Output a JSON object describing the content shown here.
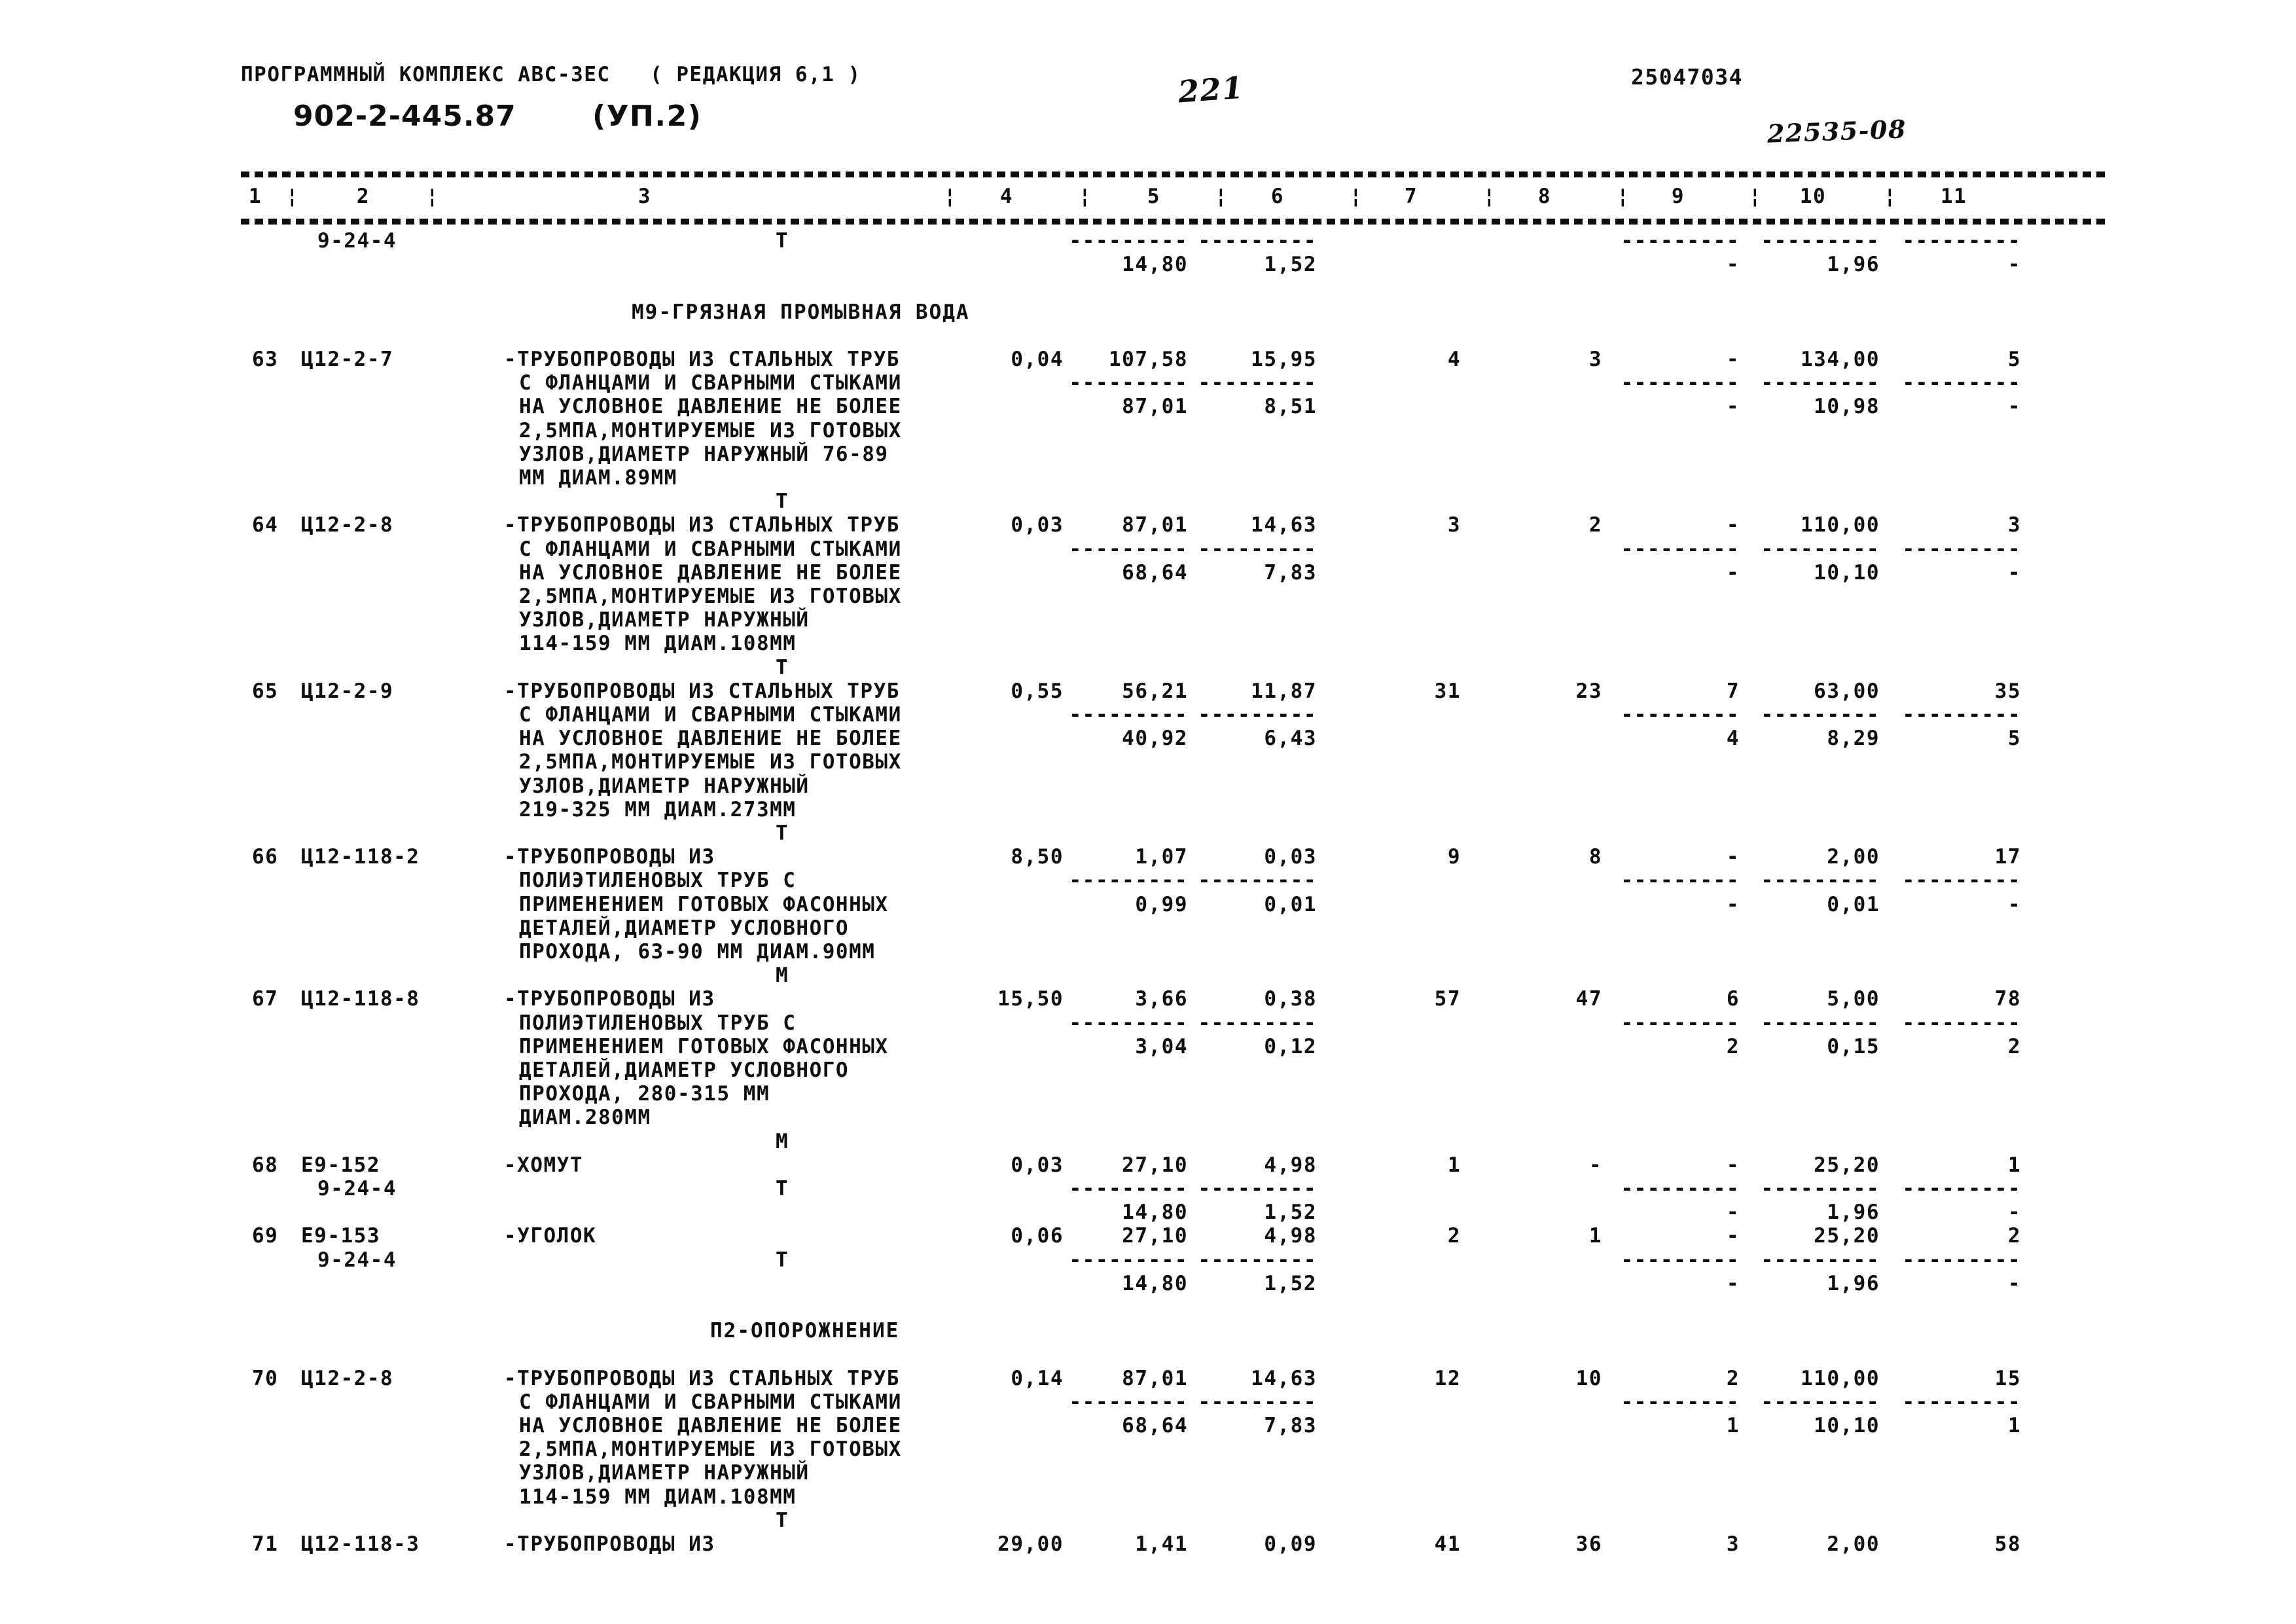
{
  "header": {
    "title": "ПРОГРАММНЫЙ КОМПЛЕКС АВС-3ЕС   ( РЕДАКЦИЯ 6,1 )",
    "page_number_handwritten": "221",
    "code_right": "25047034",
    "doc_number": "902-2-445.87",
    "doc_part": "(УП.2)",
    "stamp_handwritten": "22535-08"
  },
  "table": {
    "column_numbers": [
      "1",
      "2",
      "3",
      "4",
      "5",
      "6",
      "7",
      "8",
      "9",
      "10",
      "11"
    ],
    "column_separator": "¦",
    "dash_segment": "---------",
    "blocks": [
      {
        "type": "carryover",
        "code2": "9-24-4",
        "marker": "Т",
        "values2": [
          "14,80",
          "1,52",
          "-",
          "1,96",
          "-"
        ]
      },
      {
        "type": "section",
        "label": "М9-ГРЯЗНАЯ ПРОМЫВНАЯ ВОДА"
      },
      {
        "type": "item",
        "num": "63",
        "code": "Ц12-2-7",
        "marker": "Т",
        "v4": "0,04",
        "desc": [
          "-ТРУБОПРОВОДЫ ИЗ СТАЛЬНЫХ ТРУБ",
          "С ФЛАНЦАМИ И СВАРНЫМИ СТЫКАМИ",
          "НА УСЛОВНОЕ ДАВЛЕНИЕ НЕ БОЛЕЕ",
          "2,5МПА,МОНТИРУЕМЫЕ ИЗ ГОТОВЫХ",
          "УЗЛОВ,ДИАМЕТР НАРУЖНЫЙ 76-89",
          "ММ ДИАМ.89ММ"
        ],
        "values": [
          "107,58",
          "15,95",
          "4",
          "3",
          "-",
          "134,00",
          "5"
        ],
        "values2": [
          "87,01",
          "8,51",
          "-",
          "10,98",
          "-"
        ]
      },
      {
        "type": "item",
        "num": "64",
        "code": "Ц12-2-8",
        "marker": "Т",
        "v4": "0,03",
        "desc": [
          "-ТРУБОПРОВОДЫ ИЗ СТАЛЬНЫХ ТРУБ",
          "С ФЛАНЦАМИ И СВАРНЫМИ СТЫКАМИ",
          "НА УСЛОВНОЕ ДАВЛЕНИЕ НЕ БОЛЕЕ",
          "2,5МПА,МОНТИРУЕМЫЕ ИЗ ГОТОВЫХ",
          "УЗЛОВ,ДИАМЕТР НАРУЖНЫЙ",
          "114-159 ММ ДИАМ.108ММ"
        ],
        "values": [
          "87,01",
          "14,63",
          "3",
          "2",
          "-",
          "110,00",
          "3"
        ],
        "values2": [
          "68,64",
          "7,83",
          "-",
          "10,10",
          "-"
        ]
      },
      {
        "type": "item",
        "num": "65",
        "code": "Ц12-2-9",
        "marker": "Т",
        "v4": "0,55",
        "desc": [
          "-ТРУБОПРОВОДЫ ИЗ СТАЛЬНЫХ ТРУБ",
          "С ФЛАНЦАМИ И СВАРНЫМИ СТЫКАМИ",
          "НА УСЛОВНОЕ ДАВЛЕНИЕ НЕ БОЛЕЕ",
          "2,5МПА,МОНТИРУЕМЫЕ ИЗ ГОТОВЫХ",
          "УЗЛОВ,ДИАМЕТР НАРУЖНЫЙ",
          "219-325 ММ ДИАМ.273ММ"
        ],
        "values": [
          "56,21",
          "11,87",
          "31",
          "23",
          "7",
          "63,00",
          "35"
        ],
        "values2": [
          "40,92",
          "6,43",
          "4",
          "8,29",
          "5"
        ]
      },
      {
        "type": "item",
        "num": "66",
        "code": "Ц12-118-2",
        "marker": "М",
        "v4": "8,50",
        "desc": [
          "-ТРУБОПРОВОДЫ ИЗ",
          "ПОЛИЭТИЛЕНОВЫХ ТРУБ С",
          "ПРИМЕНЕНИЕМ ГОТОВЫХ ФАСОННЫХ",
          "ДЕТАЛЕЙ,ДИАМЕТР УСЛОВНОГО",
          "ПРОХОДА, 63-90 ММ ДИАМ.90ММ"
        ],
        "values": [
          "1,07",
          "0,03",
          "9",
          "8",
          "-",
          "2,00",
          "17"
        ],
        "values2": [
          "0,99",
          "0,01",
          "-",
          "0,01",
          "-"
        ]
      },
      {
        "type": "item",
        "num": "67",
        "code": "Ц12-118-8",
        "marker": "М",
        "v4": "15,50",
        "desc": [
          "-ТРУБОПРОВОДЫ ИЗ",
          "ПОЛИЭТИЛЕНОВЫХ ТРУБ С",
          "ПРИМЕНЕНИЕМ ГОТОВЫХ ФАСОННЫХ",
          "ДЕТАЛЕЙ,ДИАМЕТР УСЛОВНОГО",
          "ПРОХОДА, 280-315 ММ",
          "ДИАМ.280ММ"
        ],
        "values": [
          "3,66",
          "0,38",
          "57",
          "47",
          "6",
          "5,00",
          "78"
        ],
        "values2": [
          "3,04",
          "0,12",
          "2",
          "0,15",
          "2"
        ]
      },
      {
        "type": "item",
        "num": "68",
        "code": "Е9-152",
        "code2": "9-24-4",
        "marker": "Т",
        "v4": "0,03",
        "desc": [
          "-ХОМУТ"
        ],
        "values": [
          "27,10",
          "4,98",
          "1",
          "-",
          "-",
          "25,20",
          "1"
        ],
        "values2": [
          "14,80",
          "1,52",
          "-",
          "1,96",
          "-"
        ]
      },
      {
        "type": "item",
        "num": "69",
        "code": "Е9-153",
        "code2": "9-24-4",
        "marker": "Т",
        "v4": "0,06",
        "desc": [
          "-УГОЛОК"
        ],
        "values": [
          "27,10",
          "4,98",
          "2",
          "1",
          "-",
          "25,20",
          "2"
        ],
        "values2": [
          "14,80",
          "1,52",
          "-",
          "1,96",
          "-"
        ]
      },
      {
        "type": "section",
        "label": "П2-ОПОРОЖНЕНИЕ"
      },
      {
        "type": "item",
        "num": "70",
        "code": "Ц12-2-8",
        "marker": "Т",
        "v4": "0,14",
        "desc": [
          "-ТРУБОПРОВОДЫ ИЗ СТАЛЬНЫХ ТРУБ",
          "С ФЛАНЦАМИ И СВАРНЫМИ СТЫКАМИ",
          "НА УСЛОВНОЕ ДАВЛЕНИЕ НЕ БОЛЕЕ",
          "2,5МПА,МОНТИРУЕМЫЕ ИЗ ГОТОВЫХ",
          "УЗЛОВ,ДИАМЕТР НАРУЖНЫЙ",
          "114-159 ММ ДИАМ.108ММ"
        ],
        "values": [
          "87,01",
          "14,63",
          "12",
          "10",
          "2",
          "110,00",
          "15"
        ],
        "values2": [
          "68,64",
          "7,83",
          "1",
          "10,10",
          "1"
        ]
      },
      {
        "type": "item",
        "num": "71",
        "code": "Ц12-118-3",
        "v4": "29,00",
        "desc": [
          "-ТРУБОПРОВОДЫ ИЗ"
        ],
        "values": [
          "1,41",
          "0,09",
          "41",
          "36",
          "3",
          "2,00",
          "58"
        ]
      }
    ]
  }
}
